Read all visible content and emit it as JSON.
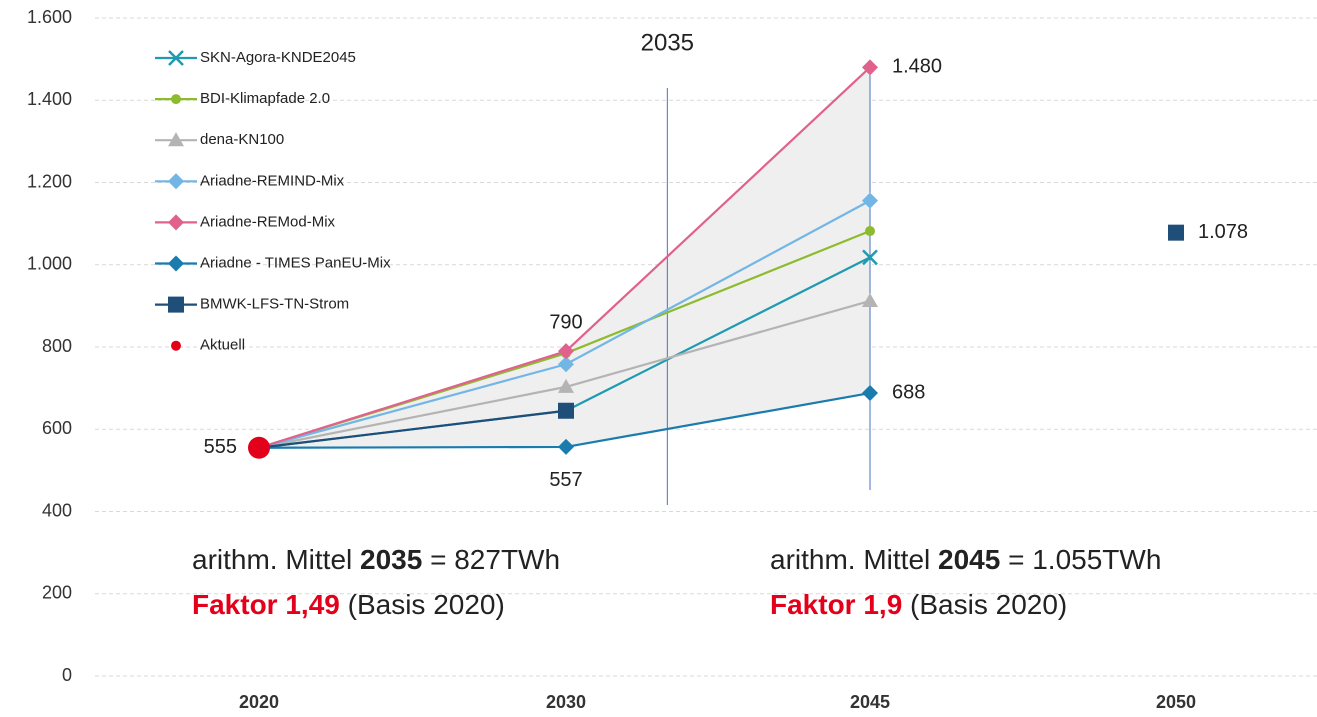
{
  "chart_data": {
    "type": "line",
    "categories": [
      "2020",
      "2030",
      "2045",
      "2050"
    ],
    "ylim": [
      0,
      1600
    ],
    "yticks": [
      0,
      200,
      400,
      600,
      800,
      {
        "value": 1000,
        "label": "1.000"
      },
      {
        "value": 1200,
        "label": "1.200"
      },
      {
        "value": 1400,
        "label": "1.400"
      },
      {
        "value": 1600,
        "label": "1.600"
      }
    ],
    "grid": true,
    "legend": "upper left",
    "series": [
      {
        "name": "SKN-Agora-KNDE2045",
        "color": "#1e9bb0",
        "marker": "x",
        "values": [
          555,
          645,
          1018,
          null
        ]
      },
      {
        "name": "BDI-Klimapfade 2.0",
        "color": "#8dbb2e",
        "marker": "circle",
        "values": [
          555,
          785,
          1082,
          null
        ]
      },
      {
        "name": "dena-KN100",
        "color": "#b4b4b4",
        "marker": "triangle",
        "values": [
          555,
          703,
          912,
          null
        ]
      },
      {
        "name": "Ariadne-REMIND-Mix",
        "color": "#72b6e6",
        "marker": "diamond",
        "values": [
          555,
          758,
          1156,
          null
        ]
      },
      {
        "name": "Ariadne-REMod-Mix",
        "color": "#e0628c",
        "marker": "diamond",
        "values": [
          555,
          790,
          1480,
          null
        ],
        "value_labels": [
          null,
          "790",
          "1.480",
          null
        ]
      },
      {
        "name": "Ariadne - TIMES PanEU-Mix",
        "color": "#1a7cae",
        "marker": "diamond",
        "values": [
          555,
          557,
          688,
          null
        ],
        "value_labels": [
          null,
          "557",
          "688",
          null
        ]
      },
      {
        "name": "BMWK-LFS-TN-Strom",
        "color": "#1f4e79",
        "marker": "square",
        "values": [
          555,
          645,
          null,
          1078
        ],
        "value_labels": [
          null,
          null,
          null,
          "1.078"
        ]
      },
      {
        "name": "Aktuell",
        "color": "#e3001b",
        "marker": "dot",
        "values": [
          555,
          null,
          null,
          null
        ],
        "value_labels": [
          "555",
          null,
          null,
          null
        ]
      }
    ],
    "reference_lines": [
      {
        "x": 2035,
        "label": "2035"
      },
      {
        "x": 2045
      }
    ],
    "notes": [
      {
        "line1": [
          "arithm. Mittel ",
          "2035",
          " = 827TWh"
        ],
        "line2": [
          "Faktor 1,49",
          " (Basis 2020)"
        ]
      },
      {
        "line1": [
          "arithm. Mittel ",
          "2045",
          " = 1.055TWh"
        ],
        "line2": [
          "Faktor 1,9",
          " (Basis 2020)"
        ]
      }
    ]
  }
}
